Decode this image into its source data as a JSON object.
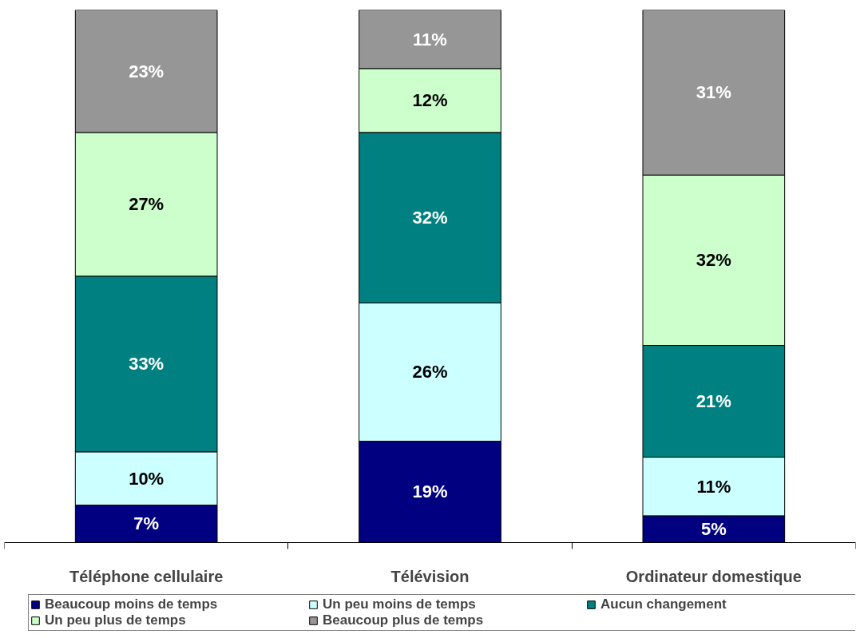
{
  "chart_data": {
    "type": "bar",
    "stacked": true,
    "grid": false,
    "legend": "bottom",
    "categories": [
      "Téléphone cellulaire",
      "Télévision",
      "Ordinateur domestique"
    ],
    "series": [
      {
        "name": "Beaucoup moins de temps",
        "color": "#000080",
        "values": [
          7,
          19,
          5
        ],
        "value_labels": [
          "7%",
          "19%",
          "5%"
        ]
      },
      {
        "name": "Un peu moins de temps",
        "color": "#ccffff",
        "values": [
          10,
          26,
          11
        ],
        "value_labels": [
          "10%",
          "26%",
          "11%"
        ]
      },
      {
        "name": "Aucun changement",
        "color": "#008080",
        "values": [
          33,
          32,
          21
        ],
        "value_labels": [
          "33%",
          "32%",
          "21%"
        ]
      },
      {
        "name": "Un peu plus de temps",
        "color": "#ccffcc",
        "values": [
          27,
          12,
          32
        ],
        "value_labels": [
          "27%",
          "12%",
          "32%"
        ]
      },
      {
        "name": "Beaucoup plus de temps",
        "color": "#969696",
        "values": [
          23,
          11,
          31
        ],
        "value_labels": [
          "23%",
          "11%",
          "31%"
        ]
      }
    ]
  }
}
